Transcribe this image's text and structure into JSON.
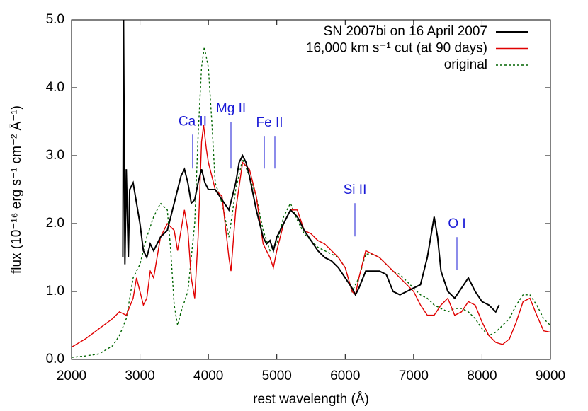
{
  "chart_data": {
    "type": "line",
    "xlabel": "rest wavelength (Å)",
    "ylabel": "flux (10⁻¹⁶ erg s⁻¹ cm⁻² Å⁻¹)",
    "xlim": [
      2000,
      9000
    ],
    "ylim": [
      0,
      5
    ],
    "xticks": [
      2000,
      3000,
      4000,
      5000,
      6000,
      7000,
      8000,
      9000
    ],
    "yticks": [
      {
        "value": 0,
        "label": "0.0"
      },
      {
        "value": 1,
        "label": "1.0"
      },
      {
        "value": 2,
        "label": "2.0"
      },
      {
        "value": 3,
        "label": "3.0"
      },
      {
        "value": 4,
        "label": "4.0"
      },
      {
        "value": 5,
        "label": "5.0"
      }
    ],
    "legend": "top-right",
    "series": [
      {
        "name": "SN 2007bi on 16 April 2007",
        "color": "#000000",
        "dash": "solid",
        "x": [
          2750,
          2760,
          2780,
          2800,
          2830,
          2850,
          2900,
          2950,
          3000,
          3050,
          3100,
          3150,
          3200,
          3300,
          3400,
          3500,
          3600,
          3650,
          3700,
          3750,
          3800,
          3850,
          3900,
          3950,
          4000,
          4100,
          4200,
          4300,
          4400,
          4450,
          4500,
          4550,
          4600,
          4700,
          4800,
          4850,
          4900,
          4950,
          5000,
          5100,
          5200,
          5300,
          5400,
          5500,
          5600,
          5700,
          5800,
          5900,
          6000,
          6100,
          6150,
          6200,
          6300,
          6400,
          6500,
          6600,
          6700,
          6800,
          6900,
          7000,
          7100,
          7200,
          7300,
          7350,
          7400,
          7500,
          7600,
          7700,
          7800,
          7900,
          8000,
          8100,
          8200,
          8250
        ],
        "values": [
          1.5,
          5.0,
          1.4,
          2.8,
          1.5,
          2.5,
          2.6,
          2.3,
          2.0,
          1.6,
          1.5,
          1.7,
          1.6,
          1.8,
          1.9,
          2.3,
          2.7,
          2.8,
          2.6,
          2.3,
          2.35,
          2.6,
          2.8,
          2.6,
          2.5,
          2.5,
          2.35,
          2.2,
          2.6,
          2.9,
          3.0,
          2.9,
          2.7,
          2.2,
          1.8,
          1.7,
          1.75,
          1.6,
          1.8,
          2.0,
          2.2,
          2.1,
          1.9,
          1.75,
          1.6,
          1.5,
          1.45,
          1.35,
          1.2,
          1.05,
          0.95,
          1.05,
          1.3,
          1.3,
          1.3,
          1.25,
          1.0,
          0.95,
          1.0,
          1.05,
          1.1,
          1.5,
          2.1,
          1.8,
          1.3,
          1.0,
          0.9,
          1.05,
          1.2,
          1.0,
          0.85,
          0.8,
          0.7,
          0.8
        ]
      },
      {
        "name": "16,000 km s⁻¹ cut (at 90 days)",
        "color": "#e00000",
        "dash": "solid",
        "x": [
          2000,
          2200,
          2400,
          2600,
          2700,
          2800,
          2900,
          2950,
          3000,
          3050,
          3100,
          3150,
          3200,
          3300,
          3400,
          3500,
          3550,
          3600,
          3650,
          3700,
          3750,
          3800,
          3850,
          3900,
          3930,
          3970,
          4000,
          4100,
          4200,
          4300,
          4330,
          4400,
          4500,
          4600,
          4700,
          4800,
          4850,
          4900,
          4950,
          5000,
          5100,
          5200,
          5300,
          5400,
          5500,
          5600,
          5700,
          5800,
          5900,
          6000,
          6100,
          6150,
          6200,
          6300,
          6400,
          6500,
          6600,
          6700,
          6800,
          6900,
          7000,
          7100,
          7200,
          7300,
          7400,
          7500,
          7600,
          7700,
          7800,
          7900,
          8000,
          8100,
          8200,
          8300,
          8400,
          8500,
          8600,
          8700,
          8800,
          8900,
          9000
        ],
        "values": [
          0.18,
          0.3,
          0.45,
          0.6,
          0.7,
          0.65,
          0.9,
          1.2,
          1.0,
          0.8,
          0.9,
          1.3,
          1.2,
          1.8,
          2.0,
          1.9,
          1.6,
          1.9,
          2.2,
          1.9,
          1.2,
          0.9,
          1.8,
          3.2,
          3.45,
          3.1,
          2.9,
          2.5,
          2.4,
          1.5,
          1.3,
          2.2,
          2.9,
          2.8,
          2.4,
          1.7,
          1.6,
          1.5,
          1.35,
          1.6,
          2.0,
          2.2,
          2.2,
          1.9,
          1.85,
          1.75,
          1.7,
          1.6,
          1.5,
          1.35,
          1.0,
          0.95,
          1.2,
          1.6,
          1.55,
          1.5,
          1.4,
          1.3,
          1.2,
          1.1,
          1.0,
          0.8,
          0.65,
          0.65,
          0.8,
          0.9,
          0.65,
          0.7,
          0.85,
          0.8,
          0.55,
          0.35,
          0.25,
          0.22,
          0.3,
          0.55,
          0.85,
          0.9,
          0.65,
          0.42,
          0.4
        ]
      },
      {
        "name": "original",
        "color": "#006400",
        "dash": "dotted",
        "x": [
          2000,
          2200,
          2400,
          2600,
          2700,
          2800,
          2900,
          3000,
          3100,
          3200,
          3300,
          3400,
          3450,
          3500,
          3550,
          3600,
          3700,
          3800,
          3850,
          3900,
          3940,
          4000,
          4050,
          4100,
          4200,
          4300,
          4400,
          4500,
          4600,
          4700,
          4800,
          4900,
          5000,
          5100,
          5200,
          5300,
          5400,
          5500,
          5600,
          5700,
          5800,
          5900,
          6000,
          6100,
          6200,
          6300,
          6400,
          6500,
          6600,
          6700,
          6800,
          6900,
          7000,
          7100,
          7200,
          7300,
          7400,
          7500,
          7600,
          7700,
          7800,
          7900,
          8000,
          8100,
          8200,
          8300,
          8400,
          8500,
          8600,
          8700,
          8800,
          8900,
          9000
        ],
        "values": [
          0.03,
          0.05,
          0.08,
          0.2,
          0.35,
          0.6,
          1.2,
          1.4,
          1.8,
          2.1,
          2.3,
          2.2,
          1.6,
          0.8,
          0.5,
          0.7,
          1.0,
          2.0,
          3.3,
          4.3,
          4.6,
          4.3,
          3.5,
          2.6,
          2.3,
          1.8,
          2.5,
          2.95,
          2.7,
          2.4,
          1.9,
          1.6,
          1.7,
          2.1,
          2.3,
          2.05,
          1.85,
          1.75,
          1.65,
          1.6,
          1.55,
          1.5,
          1.35,
          1.0,
          1.2,
          1.55,
          1.55,
          1.5,
          1.4,
          1.3,
          1.25,
          1.15,
          1.05,
          0.95,
          0.9,
          0.8,
          0.75,
          0.7,
          0.75,
          0.75,
          0.7,
          0.6,
          0.45,
          0.35,
          0.4,
          0.5,
          0.6,
          0.8,
          0.95,
          0.95,
          0.8,
          0.6,
          0.5
        ]
      }
    ],
    "annotations": [
      {
        "text": "Ca II",
        "x": [
          3770
        ],
        "y": [
          2.81,
          3.31
        ]
      },
      {
        "text": "Mg II",
        "x": [
          4330
        ],
        "y": [
          2.81,
          3.5
        ]
      },
      {
        "text": "Fe II",
        "x": [
          4817,
          4972
        ],
        "y": [
          2.81,
          3.29
        ]
      },
      {
        "text": "Si II",
        "x": [
          6142
        ],
        "y": [
          1.81,
          2.3
        ]
      },
      {
        "text": "O I",
        "x": [
          7633
        ],
        "y": [
          1.32,
          1.8
        ]
      }
    ]
  }
}
